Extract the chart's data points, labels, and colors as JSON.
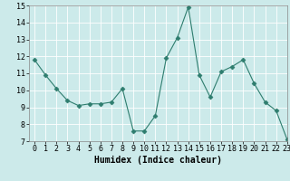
{
  "x": [
    0,
    1,
    2,
    3,
    4,
    5,
    6,
    7,
    8,
    9,
    10,
    11,
    12,
    13,
    14,
    15,
    16,
    17,
    18,
    19,
    20,
    21,
    22,
    23
  ],
  "y": [
    11.8,
    10.9,
    10.1,
    9.4,
    9.1,
    9.2,
    9.2,
    9.3,
    10.1,
    7.6,
    7.6,
    8.5,
    11.9,
    13.1,
    14.9,
    10.9,
    9.6,
    11.1,
    11.4,
    11.8,
    10.4,
    9.3,
    8.8,
    7.1
  ],
  "line_color": "#2e7d6e",
  "marker": "D",
  "marker_size": 2.5,
  "bg_color": "#cceaea",
  "grid_color": "#ffffff",
  "xlabel": "Humidex (Indice chaleur)",
  "ylim": [
    7,
    15
  ],
  "xlim": [
    -0.5,
    23
  ],
  "yticks": [
    7,
    8,
    9,
    10,
    11,
    12,
    13,
    14,
    15
  ],
  "xticks": [
    0,
    1,
    2,
    3,
    4,
    5,
    6,
    7,
    8,
    9,
    10,
    11,
    12,
    13,
    14,
    15,
    16,
    17,
    18,
    19,
    20,
    21,
    22,
    23
  ],
  "tick_fontsize": 6,
  "xlabel_fontsize": 7
}
